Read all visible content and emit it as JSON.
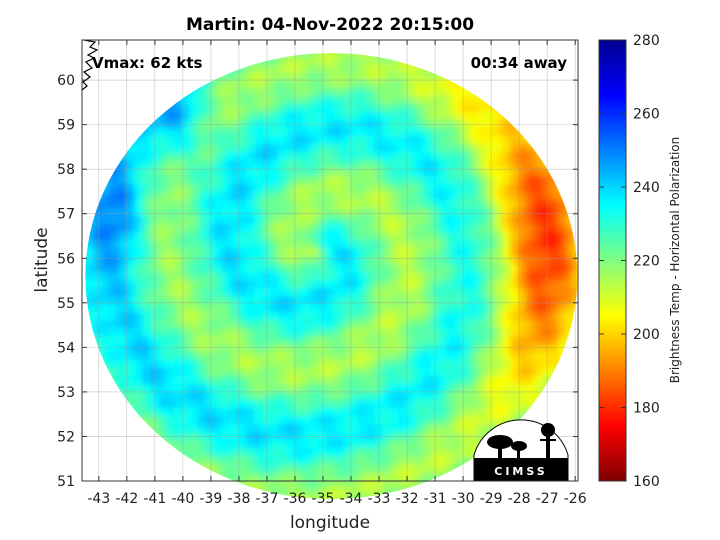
{
  "title": "Martin: 04-Nov-2022 20:15:00",
  "vmax_label": "Vmax: 62 kts",
  "time_label": "00:34 away",
  "logo_text": "CIMSS",
  "chart_data": {
    "type": "heatmap",
    "xlabel": "longitude",
    "ylabel": "latitude",
    "xlim": [
      -43.6,
      -25.9
    ],
    "ylim": [
      51,
      60.9
    ],
    "xticks": [
      -43,
      -42,
      -41,
      -40,
      -39,
      -38,
      -37,
      -36,
      -35,
      -34,
      -33,
      -32,
      -31,
      -30,
      -29,
      -28,
      -27,
      -26
    ],
    "yticks": [
      51,
      52,
      53,
      54,
      55,
      56,
      57,
      58,
      59,
      60
    ],
    "grid": true,
    "colorbar": {
      "label": "Brightness Temp - Horizontal Polarization",
      "range": [
        160,
        280
      ],
      "ticks": [
        160,
        180,
        200,
        220,
        240,
        260,
        280
      ],
      "colormap": [
        "#7f0000",
        "#ff0000",
        "#ff8000",
        "#ffff00",
        "#80ff80",
        "#00ffff",
        "#0080ff",
        "#0000ff",
        "#00008f"
      ]
    },
    "storm_center": {
      "lon": -35.3,
      "lat": 56.3
    },
    "swath_center": {
      "lon": -34.7,
      "lat": 55.6
    }
  }
}
